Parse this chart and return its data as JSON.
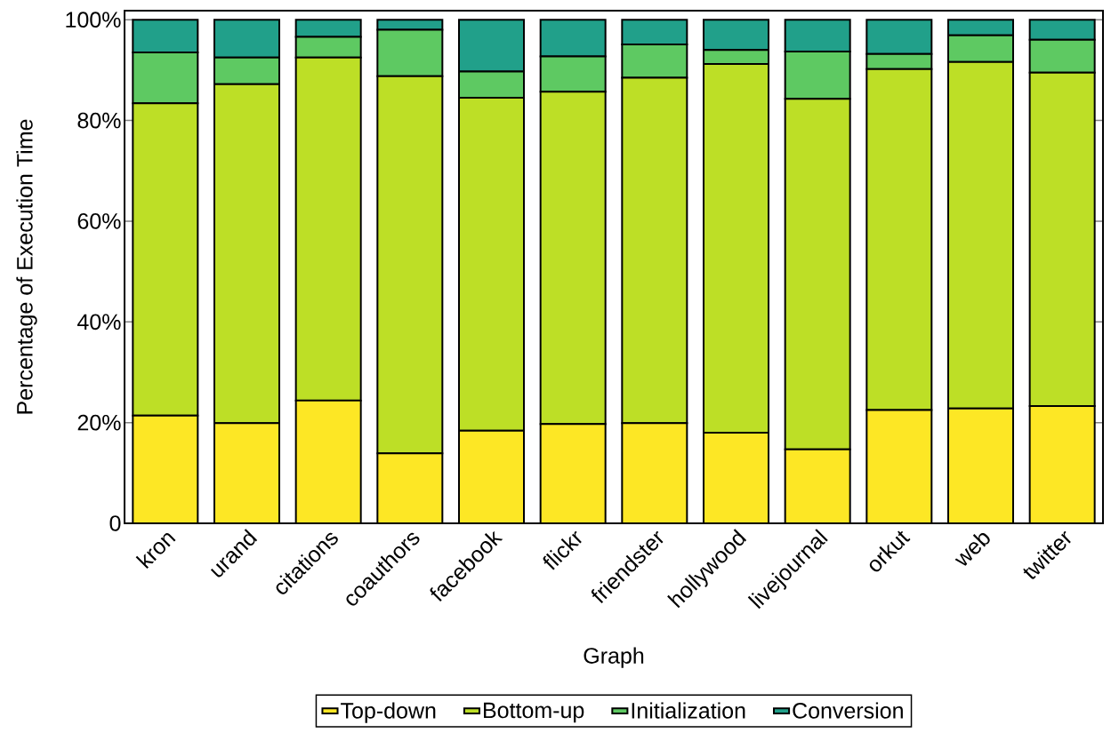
{
  "chart_data": {
    "type": "bar",
    "stacked": true,
    "xlabel": "Graph",
    "ylabel": "Percentage of Execution Time",
    "categories": [
      "kron",
      "urand",
      "citations",
      "coauthors",
      "facebook",
      "flickr",
      "friendster",
      "hollywood",
      "livejournal",
      "orkut",
      "web",
      "twitter"
    ],
    "series": [
      {
        "name": "Top-down",
        "color": "#fde725",
        "values": [
          21.4,
          19.9,
          24.4,
          13.9,
          18.4,
          19.7,
          19.9,
          18.0,
          14.7,
          22.5,
          22.8,
          23.3
        ]
      },
      {
        "name": "Bottom-up",
        "color": "#bddf26",
        "values": [
          62.0,
          67.3,
          68.1,
          74.9,
          66.1,
          66.0,
          68.6,
          73.2,
          69.6,
          67.7,
          68.8,
          66.2
        ]
      },
      {
        "name": "Initialization",
        "color": "#5ec962",
        "values": [
          10.1,
          5.3,
          4.1,
          9.2,
          5.2,
          7.0,
          6.6,
          2.8,
          9.4,
          3.0,
          5.3,
          6.5
        ]
      },
      {
        "name": "Conversion",
        "color": "#21a08a",
        "values": [
          6.5,
          7.5,
          3.4,
          2.0,
          10.3,
          7.3,
          4.9,
          6.0,
          6.3,
          6.8,
          3.1,
          4.0
        ]
      }
    ],
    "ylim": [
      0,
      101.8
    ],
    "yticks": [
      0,
      {
        "value": 20,
        "label": "20%"
      },
      {
        "value": 40,
        "label": "40%"
      },
      {
        "value": 60,
        "label": "60%"
      },
      {
        "value": 80,
        "label": "80%"
      },
      {
        "value": 100,
        "label": "100%"
      }
    ],
    "legend": "bottom"
  }
}
